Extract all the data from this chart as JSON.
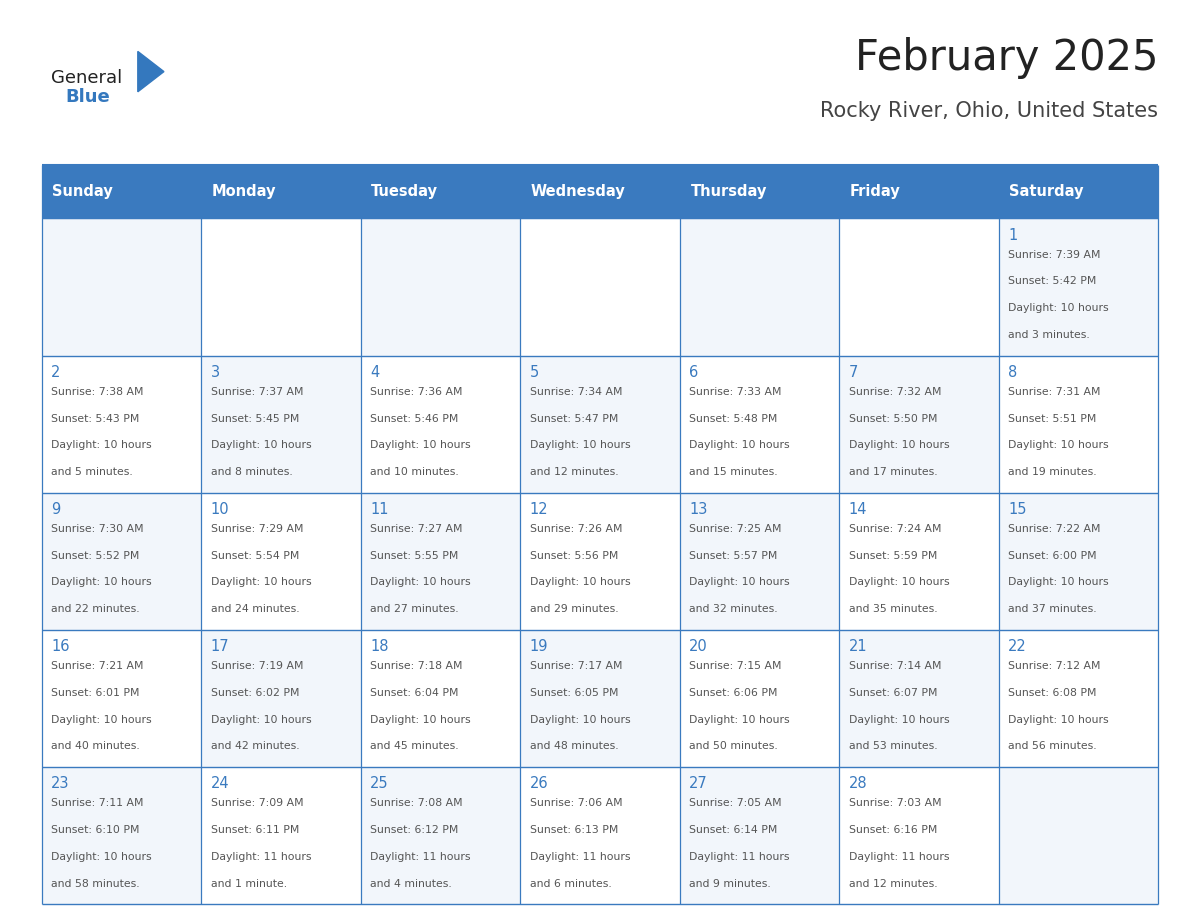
{
  "title": "February 2025",
  "subtitle": "Rocky River, Ohio, United States",
  "days_of_week": [
    "Sunday",
    "Monday",
    "Tuesday",
    "Wednesday",
    "Thursday",
    "Friday",
    "Saturday"
  ],
  "header_bg": "#3a7abf",
  "header_text_color": "#ffffff",
  "border_color": "#3a7abf",
  "day_num_color": "#3a7abf",
  "text_color": "#555555",
  "logo_general_color": "#222222",
  "logo_blue_color": "#3478be",
  "logo_triangle_color": "#3478be",
  "title_color": "#222222",
  "subtitle_color": "#444444",
  "calendar_data": [
    [
      null,
      null,
      null,
      null,
      null,
      null,
      {
        "day": 1,
        "sunrise": "7:39 AM",
        "sunset": "5:42 PM",
        "daylight": "10 hours",
        "daylight2": "and 3 minutes."
      }
    ],
    [
      {
        "day": 2,
        "sunrise": "7:38 AM",
        "sunset": "5:43 PM",
        "daylight": "10 hours",
        "daylight2": "and 5 minutes."
      },
      {
        "day": 3,
        "sunrise": "7:37 AM",
        "sunset": "5:45 PM",
        "daylight": "10 hours",
        "daylight2": "and 8 minutes."
      },
      {
        "day": 4,
        "sunrise": "7:36 AM",
        "sunset": "5:46 PM",
        "daylight": "10 hours",
        "daylight2": "and 10 minutes."
      },
      {
        "day": 5,
        "sunrise": "7:34 AM",
        "sunset": "5:47 PM",
        "daylight": "10 hours",
        "daylight2": "and 12 minutes."
      },
      {
        "day": 6,
        "sunrise": "7:33 AM",
        "sunset": "5:48 PM",
        "daylight": "10 hours",
        "daylight2": "and 15 minutes."
      },
      {
        "day": 7,
        "sunrise": "7:32 AM",
        "sunset": "5:50 PM",
        "daylight": "10 hours",
        "daylight2": "and 17 minutes."
      },
      {
        "day": 8,
        "sunrise": "7:31 AM",
        "sunset": "5:51 PM",
        "daylight": "10 hours",
        "daylight2": "and 19 minutes."
      }
    ],
    [
      {
        "day": 9,
        "sunrise": "7:30 AM",
        "sunset": "5:52 PM",
        "daylight": "10 hours",
        "daylight2": "and 22 minutes."
      },
      {
        "day": 10,
        "sunrise": "7:29 AM",
        "sunset": "5:54 PM",
        "daylight": "10 hours",
        "daylight2": "and 24 minutes."
      },
      {
        "day": 11,
        "sunrise": "7:27 AM",
        "sunset": "5:55 PM",
        "daylight": "10 hours",
        "daylight2": "and 27 minutes."
      },
      {
        "day": 12,
        "sunrise": "7:26 AM",
        "sunset": "5:56 PM",
        "daylight": "10 hours",
        "daylight2": "and 29 minutes."
      },
      {
        "day": 13,
        "sunrise": "7:25 AM",
        "sunset": "5:57 PM",
        "daylight": "10 hours",
        "daylight2": "and 32 minutes."
      },
      {
        "day": 14,
        "sunrise": "7:24 AM",
        "sunset": "5:59 PM",
        "daylight": "10 hours",
        "daylight2": "and 35 minutes."
      },
      {
        "day": 15,
        "sunrise": "7:22 AM",
        "sunset": "6:00 PM",
        "daylight": "10 hours",
        "daylight2": "and 37 minutes."
      }
    ],
    [
      {
        "day": 16,
        "sunrise": "7:21 AM",
        "sunset": "6:01 PM",
        "daylight": "10 hours",
        "daylight2": "and 40 minutes."
      },
      {
        "day": 17,
        "sunrise": "7:19 AM",
        "sunset": "6:02 PM",
        "daylight": "10 hours",
        "daylight2": "and 42 minutes."
      },
      {
        "day": 18,
        "sunrise": "7:18 AM",
        "sunset": "6:04 PM",
        "daylight": "10 hours",
        "daylight2": "and 45 minutes."
      },
      {
        "day": 19,
        "sunrise": "7:17 AM",
        "sunset": "6:05 PM",
        "daylight": "10 hours",
        "daylight2": "and 48 minutes."
      },
      {
        "day": 20,
        "sunrise": "7:15 AM",
        "sunset": "6:06 PM",
        "daylight": "10 hours",
        "daylight2": "and 50 minutes."
      },
      {
        "day": 21,
        "sunrise": "7:14 AM",
        "sunset": "6:07 PM",
        "daylight": "10 hours",
        "daylight2": "and 53 minutes."
      },
      {
        "day": 22,
        "sunrise": "7:12 AM",
        "sunset": "6:08 PM",
        "daylight": "10 hours",
        "daylight2": "and 56 minutes."
      }
    ],
    [
      {
        "day": 23,
        "sunrise": "7:11 AM",
        "sunset": "6:10 PM",
        "daylight": "10 hours",
        "daylight2": "and 58 minutes."
      },
      {
        "day": 24,
        "sunrise": "7:09 AM",
        "sunset": "6:11 PM",
        "daylight": "11 hours",
        "daylight2": "and 1 minute."
      },
      {
        "day": 25,
        "sunrise": "7:08 AM",
        "sunset": "6:12 PM",
        "daylight": "11 hours",
        "daylight2": "and 4 minutes."
      },
      {
        "day": 26,
        "sunrise": "7:06 AM",
        "sunset": "6:13 PM",
        "daylight": "11 hours",
        "daylight2": "and 6 minutes."
      },
      {
        "day": 27,
        "sunrise": "7:05 AM",
        "sunset": "6:14 PM",
        "daylight": "11 hours",
        "daylight2": "and 9 minutes."
      },
      {
        "day": 28,
        "sunrise": "7:03 AM",
        "sunset": "6:16 PM",
        "daylight": "11 hours",
        "daylight2": "and 12 minutes."
      },
      null
    ]
  ]
}
